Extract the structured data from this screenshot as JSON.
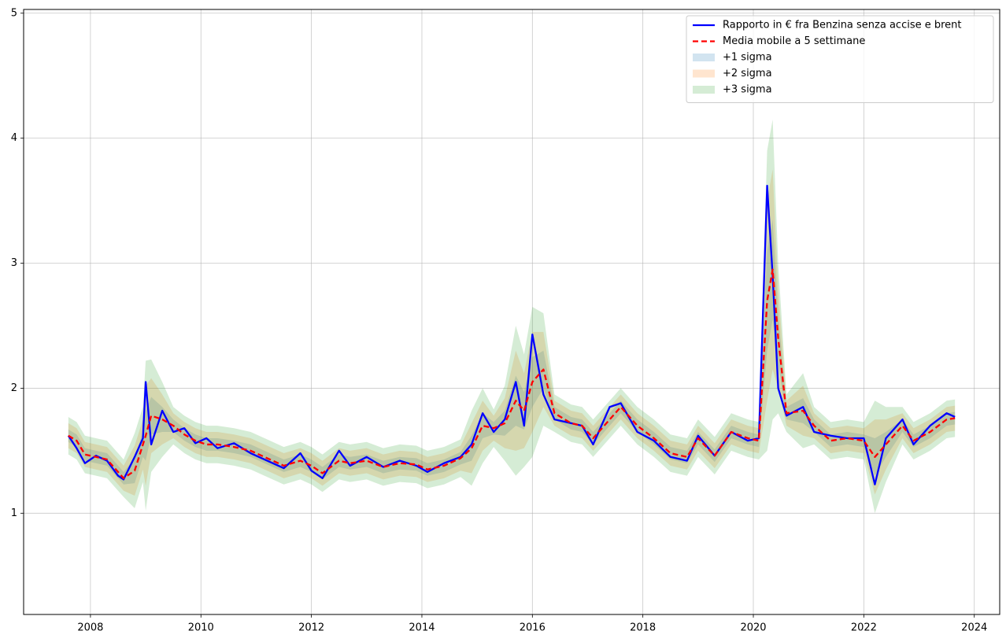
{
  "chart_data": {
    "type": "line",
    "grid": true,
    "legend": "upper right",
    "xlim": [
      2006.79,
      2024.46
    ],
    "ylim": [
      0.19,
      5.03
    ],
    "xticks": [
      2008,
      2010,
      2012,
      2014,
      2016,
      2018,
      2020,
      2022,
      2024
    ],
    "yticks": [
      1,
      2,
      3,
      4,
      5
    ],
    "x": [
      2007.6,
      2007.75,
      2007.9,
      2008.1,
      2008.3,
      2008.5,
      2008.6,
      2008.8,
      2008.95,
      2009.0,
      2009.1,
      2009.3,
      2009.5,
      2009.7,
      2009.9,
      2010.1,
      2010.3,
      2010.6,
      2010.9,
      2011.2,
      2011.5,
      2011.8,
      2012.0,
      2012.2,
      2012.5,
      2012.7,
      2013.0,
      2013.3,
      2013.6,
      2013.9,
      2014.1,
      2014.4,
      2014.7,
      2014.9,
      2015.1,
      2015.3,
      2015.5,
      2015.7,
      2015.85,
      2016.0,
      2016.2,
      2016.4,
      2016.7,
      2016.9,
      2017.1,
      2017.4,
      2017.6,
      2017.9,
      2018.2,
      2018.5,
      2018.8,
      2019.0,
      2019.3,
      2019.6,
      2019.9,
      2020.1,
      2020.25,
      2020.35,
      2020.45,
      2020.6,
      2020.9,
      2021.1,
      2021.4,
      2021.7,
      2022.0,
      2022.2,
      2022.4,
      2022.7,
      2022.9,
      2023.2,
      2023.5,
      2023.65
    ],
    "series": [
      {
        "name": "Rapporto in € fra Benzina senza accise e brent",
        "color": "#0000ff",
        "dash": false,
        "values": [
          1.62,
          1.52,
          1.4,
          1.46,
          1.42,
          1.3,
          1.27,
          1.45,
          1.6,
          2.05,
          1.55,
          1.82,
          1.65,
          1.68,
          1.56,
          1.6,
          1.52,
          1.56,
          1.48,
          1.42,
          1.36,
          1.48,
          1.34,
          1.28,
          1.5,
          1.38,
          1.45,
          1.37,
          1.42,
          1.38,
          1.33,
          1.4,
          1.45,
          1.55,
          1.8,
          1.65,
          1.75,
          2.05,
          1.7,
          2.43,
          1.95,
          1.75,
          1.72,
          1.7,
          1.55,
          1.85,
          1.88,
          1.65,
          1.58,
          1.45,
          1.42,
          1.62,
          1.46,
          1.65,
          1.58,
          1.6,
          3.62,
          2.9,
          2.0,
          1.78,
          1.85,
          1.65,
          1.62,
          1.6,
          1.6,
          1.23,
          1.6,
          1.75,
          1.55,
          1.7,
          1.8,
          1.77
        ]
      },
      {
        "name": "Media mobile a 5 settimane",
        "color": "#ff0000",
        "dash": true,
        "values": [
          1.62,
          1.58,
          1.47,
          1.45,
          1.43,
          1.33,
          1.28,
          1.34,
          1.55,
          1.62,
          1.78,
          1.75,
          1.7,
          1.63,
          1.58,
          1.55,
          1.55,
          1.53,
          1.5,
          1.44,
          1.38,
          1.42,
          1.38,
          1.32,
          1.42,
          1.4,
          1.42,
          1.37,
          1.4,
          1.39,
          1.35,
          1.38,
          1.44,
          1.52,
          1.7,
          1.68,
          1.72,
          1.9,
          1.82,
          2.05,
          2.15,
          1.8,
          1.72,
          1.7,
          1.6,
          1.75,
          1.85,
          1.7,
          1.6,
          1.48,
          1.45,
          1.6,
          1.46,
          1.65,
          1.6,
          1.58,
          2.7,
          2.95,
          2.4,
          1.8,
          1.82,
          1.7,
          1.58,
          1.6,
          1.58,
          1.45,
          1.55,
          1.7,
          1.58,
          1.65,
          1.75,
          1.76
        ]
      }
    ],
    "bands": [
      {
        "name": "+1 sigma",
        "color": "#1f77b4",
        "upper": [
          1.67,
          1.63,
          1.52,
          1.5,
          1.48,
          1.38,
          1.33,
          1.44,
          1.65,
          1.82,
          1.93,
          1.85,
          1.75,
          1.68,
          1.63,
          1.6,
          1.6,
          1.58,
          1.55,
          1.49,
          1.43,
          1.47,
          1.43,
          1.37,
          1.47,
          1.45,
          1.47,
          1.42,
          1.45,
          1.44,
          1.4,
          1.43,
          1.49,
          1.62,
          1.8,
          1.73,
          1.82,
          2.1,
          1.97,
          2.25,
          2.3,
          1.85,
          1.77,
          1.75,
          1.65,
          1.8,
          1.9,
          1.75,
          1.65,
          1.53,
          1.5,
          1.65,
          1.51,
          1.7,
          1.65,
          1.63,
          3.1,
          3.35,
          2.6,
          1.85,
          1.92,
          1.75,
          1.63,
          1.65,
          1.63,
          1.6,
          1.65,
          1.75,
          1.63,
          1.7,
          1.8,
          1.81
        ],
        "lower": [
          1.57,
          1.53,
          1.42,
          1.4,
          1.38,
          1.28,
          1.23,
          1.24,
          1.45,
          1.42,
          1.63,
          1.65,
          1.65,
          1.58,
          1.53,
          1.5,
          1.5,
          1.48,
          1.45,
          1.39,
          1.33,
          1.37,
          1.33,
          1.27,
          1.37,
          1.35,
          1.37,
          1.32,
          1.35,
          1.34,
          1.3,
          1.33,
          1.39,
          1.42,
          1.6,
          1.63,
          1.62,
          1.7,
          1.67,
          1.85,
          2.0,
          1.75,
          1.67,
          1.65,
          1.55,
          1.7,
          1.8,
          1.65,
          1.55,
          1.43,
          1.4,
          1.55,
          1.41,
          1.6,
          1.55,
          1.53,
          2.3,
          2.55,
          2.2,
          1.75,
          1.72,
          1.65,
          1.53,
          1.55,
          1.53,
          1.3,
          1.45,
          1.65,
          1.53,
          1.6,
          1.7,
          1.71
        ]
      },
      {
        "name": "+2 sigma",
        "color": "#ff7f0e",
        "upper": [
          1.72,
          1.68,
          1.57,
          1.55,
          1.53,
          1.43,
          1.38,
          1.54,
          1.75,
          2.02,
          2.08,
          1.95,
          1.8,
          1.73,
          1.68,
          1.65,
          1.65,
          1.63,
          1.6,
          1.54,
          1.48,
          1.52,
          1.48,
          1.42,
          1.52,
          1.5,
          1.52,
          1.47,
          1.5,
          1.49,
          1.45,
          1.48,
          1.54,
          1.72,
          1.9,
          1.78,
          1.92,
          2.3,
          2.12,
          2.45,
          2.45,
          1.9,
          1.82,
          1.8,
          1.7,
          1.85,
          1.95,
          1.8,
          1.7,
          1.58,
          1.55,
          1.7,
          1.56,
          1.75,
          1.7,
          1.68,
          3.5,
          3.75,
          2.8,
          1.9,
          2.02,
          1.8,
          1.68,
          1.7,
          1.68,
          1.75,
          1.75,
          1.8,
          1.68,
          1.75,
          1.85,
          1.86
        ],
        "lower": [
          1.52,
          1.48,
          1.37,
          1.35,
          1.33,
          1.23,
          1.18,
          1.14,
          1.35,
          1.22,
          1.48,
          1.55,
          1.6,
          1.53,
          1.48,
          1.45,
          1.45,
          1.43,
          1.4,
          1.34,
          1.28,
          1.32,
          1.28,
          1.22,
          1.32,
          1.3,
          1.32,
          1.27,
          1.3,
          1.29,
          1.25,
          1.28,
          1.34,
          1.32,
          1.5,
          1.58,
          1.52,
          1.5,
          1.52,
          1.65,
          1.85,
          1.7,
          1.62,
          1.6,
          1.5,
          1.65,
          1.75,
          1.6,
          1.5,
          1.38,
          1.35,
          1.5,
          1.36,
          1.55,
          1.5,
          1.48,
          1.9,
          2.15,
          2.0,
          1.7,
          1.62,
          1.6,
          1.48,
          1.5,
          1.48,
          1.15,
          1.35,
          1.6,
          1.48,
          1.55,
          1.65,
          1.66
        ]
      },
      {
        "name": "+3 sigma",
        "color": "#2ca02c",
        "upper": [
          1.77,
          1.73,
          1.62,
          1.6,
          1.58,
          1.48,
          1.43,
          1.64,
          1.85,
          2.22,
          2.23,
          2.05,
          1.85,
          1.78,
          1.73,
          1.7,
          1.7,
          1.68,
          1.65,
          1.59,
          1.53,
          1.57,
          1.53,
          1.47,
          1.57,
          1.55,
          1.57,
          1.52,
          1.55,
          1.54,
          1.5,
          1.53,
          1.59,
          1.82,
          2.0,
          1.83,
          2.02,
          2.5,
          2.27,
          2.65,
          2.6,
          1.95,
          1.87,
          1.85,
          1.75,
          1.9,
          2.0,
          1.85,
          1.75,
          1.63,
          1.6,
          1.75,
          1.61,
          1.8,
          1.75,
          1.73,
          3.9,
          4.15,
          3.0,
          1.95,
          2.12,
          1.85,
          1.73,
          1.75,
          1.73,
          1.9,
          1.85,
          1.85,
          1.73,
          1.8,
          1.9,
          1.91
        ],
        "lower": [
          1.47,
          1.43,
          1.32,
          1.3,
          1.28,
          1.18,
          1.13,
          1.04,
          1.25,
          1.02,
          1.33,
          1.45,
          1.55,
          1.48,
          1.43,
          1.4,
          1.4,
          1.38,
          1.35,
          1.29,
          1.23,
          1.27,
          1.23,
          1.17,
          1.27,
          1.25,
          1.27,
          1.22,
          1.25,
          1.24,
          1.2,
          1.23,
          1.29,
          1.22,
          1.4,
          1.53,
          1.42,
          1.3,
          1.37,
          1.45,
          1.7,
          1.65,
          1.57,
          1.55,
          1.45,
          1.6,
          1.7,
          1.55,
          1.45,
          1.33,
          1.3,
          1.45,
          1.31,
          1.5,
          1.45,
          1.43,
          1.5,
          1.75,
          1.8,
          1.65,
          1.52,
          1.55,
          1.43,
          1.45,
          1.43,
          1.0,
          1.25,
          1.55,
          1.43,
          1.5,
          1.6,
          1.61
        ]
      }
    ]
  }
}
